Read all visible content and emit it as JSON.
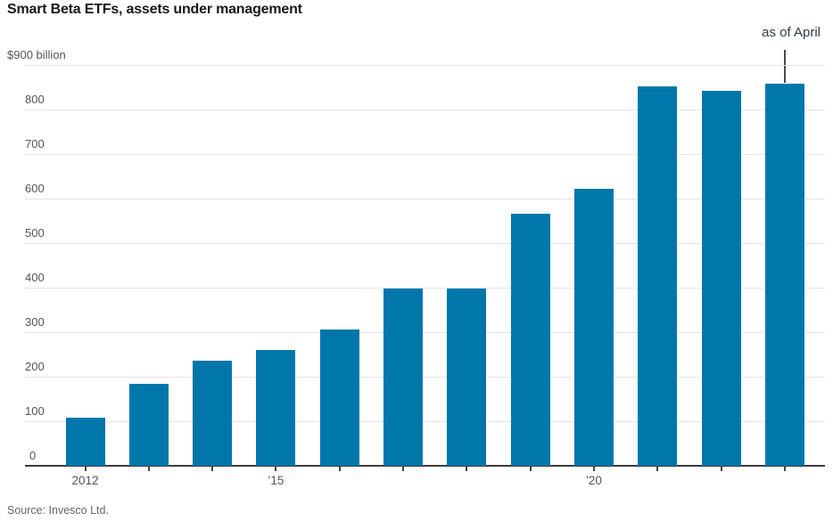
{
  "title": "Smart Beta ETFs, assets under management",
  "annotation": {
    "label": "as of April"
  },
  "source": "Source: Invesco Ltd.",
  "colors": {
    "background": "#ffffff",
    "bar": "#0077AB",
    "title_text": "#181818",
    "axis_text": "#555555",
    "gridline": "#e4e4e4",
    "axis_line": "#3d3d3d",
    "tick": "#444444",
    "annotation_text": "#333d46",
    "annotation_line": "#4a4a4a",
    "source_text": "#666666"
  },
  "chart_data": {
    "type": "bar",
    "title": "Smart Beta ETFs, assets under management",
    "unit": "$ billion",
    "categories": [
      "2012",
      "2013",
      "2014",
      "2015",
      "2016",
      "2017",
      "2018",
      "2019",
      "2020",
      "2021",
      "2022",
      "2023"
    ],
    "values": [
      108,
      184,
      235,
      260,
      306,
      397,
      397,
      566,
      622,
      852,
      841,
      858
    ],
    "x_tick_labels": [
      "2012",
      "",
      "",
      "’15",
      "",
      "",
      "",
      "",
      "’20",
      "",
      "",
      ""
    ],
    "ylim": [
      0,
      900
    ],
    "y_ticks": [
      {
        "value": 0,
        "label": "0"
      },
      {
        "value": 100,
        "label": "100"
      },
      {
        "value": 200,
        "label": "200"
      },
      {
        "value": 300,
        "label": "300"
      },
      {
        "value": 400,
        "label": "400"
      },
      {
        "value": 500,
        "label": "500"
      },
      {
        "value": 600,
        "label": "600"
      },
      {
        "value": 700,
        "label": "700"
      },
      {
        "value": 800,
        "label": "800"
      },
      {
        "value": 900,
        "label": "$900 billion"
      }
    ],
    "grid": "horizontal",
    "legend": "none",
    "annotation": {
      "label": "as of April",
      "target_category": "2023"
    }
  }
}
